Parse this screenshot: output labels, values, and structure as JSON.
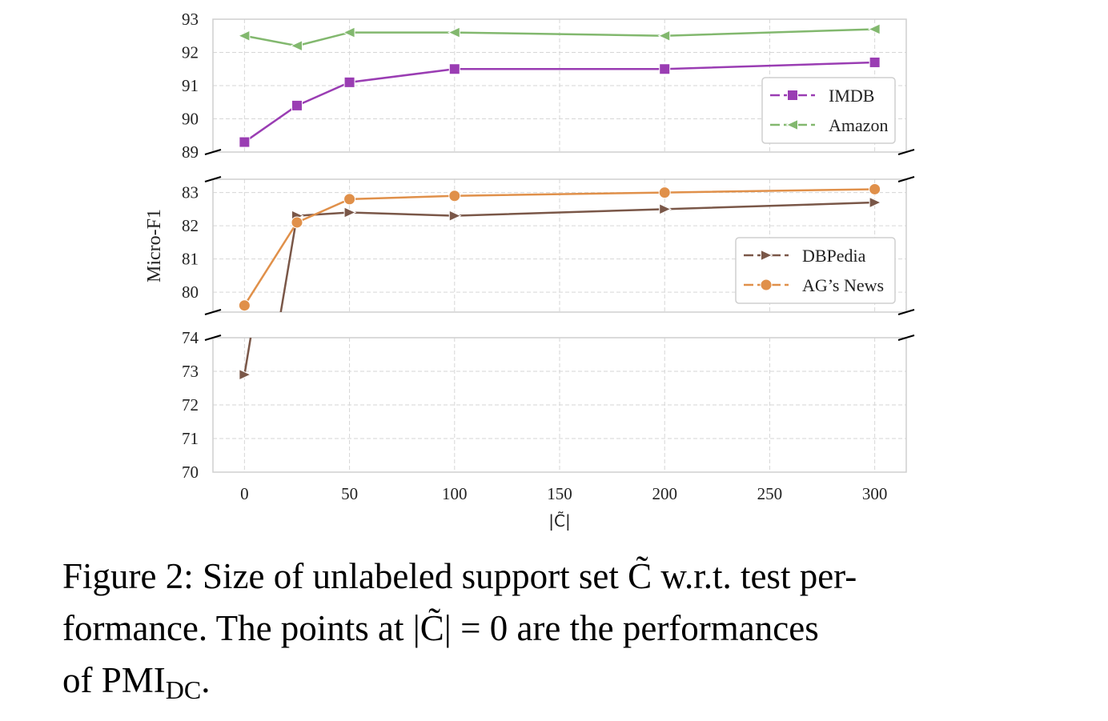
{
  "chart_data": {
    "type": "line",
    "xlabel": "|C̃|",
    "ylabel": "Micro-F1",
    "x": [
      0,
      25,
      50,
      100,
      200,
      300
    ],
    "xlim": [
      -15,
      315
    ],
    "xticks": [
      0,
      50,
      100,
      150,
      200,
      250,
      300
    ],
    "panels": [
      {
        "ylim": [
          89,
          93
        ],
        "yticks": [
          89,
          90,
          91,
          92,
          93
        ]
      },
      {
        "ylim": [
          79.4,
          83.4
        ],
        "yticks": [
          80,
          81,
          82,
          83
        ]
      },
      {
        "ylim": [
          70,
          74
        ],
        "yticks": [
          70,
          71,
          72,
          73,
          74
        ]
      }
    ],
    "grid": true,
    "legend": "right",
    "series": [
      {
        "name": "IMDB",
        "color": "#9a3db3",
        "marker": "square",
        "values": [
          89.3,
          90.4,
          91.1,
          91.5,
          91.5,
          91.7
        ]
      },
      {
        "name": "Amazon",
        "color": "#82b86e",
        "marker": "triangle-left",
        "values": [
          92.5,
          92.2,
          92.6,
          92.6,
          92.5,
          92.7
        ]
      },
      {
        "name": "DBPedia",
        "color": "#7a5748",
        "marker": "triangle-right",
        "values": [
          72.9,
          82.3,
          82.4,
          82.3,
          82.5,
          82.7
        ]
      },
      {
        "name": "AG’s News",
        "color": "#e0904a",
        "marker": "circle",
        "values": [
          79.6,
          82.1,
          82.8,
          82.9,
          83.0,
          83.1
        ]
      }
    ]
  },
  "caption": {
    "lines": [
      "Figure 2: Size of unlabeled support set C̃ w.r.t. test per-",
      "formance. The points at |C̃| = 0 are the performances"
    ],
    "last": "of PMI",
    "sub": "DC",
    "end": "."
  }
}
